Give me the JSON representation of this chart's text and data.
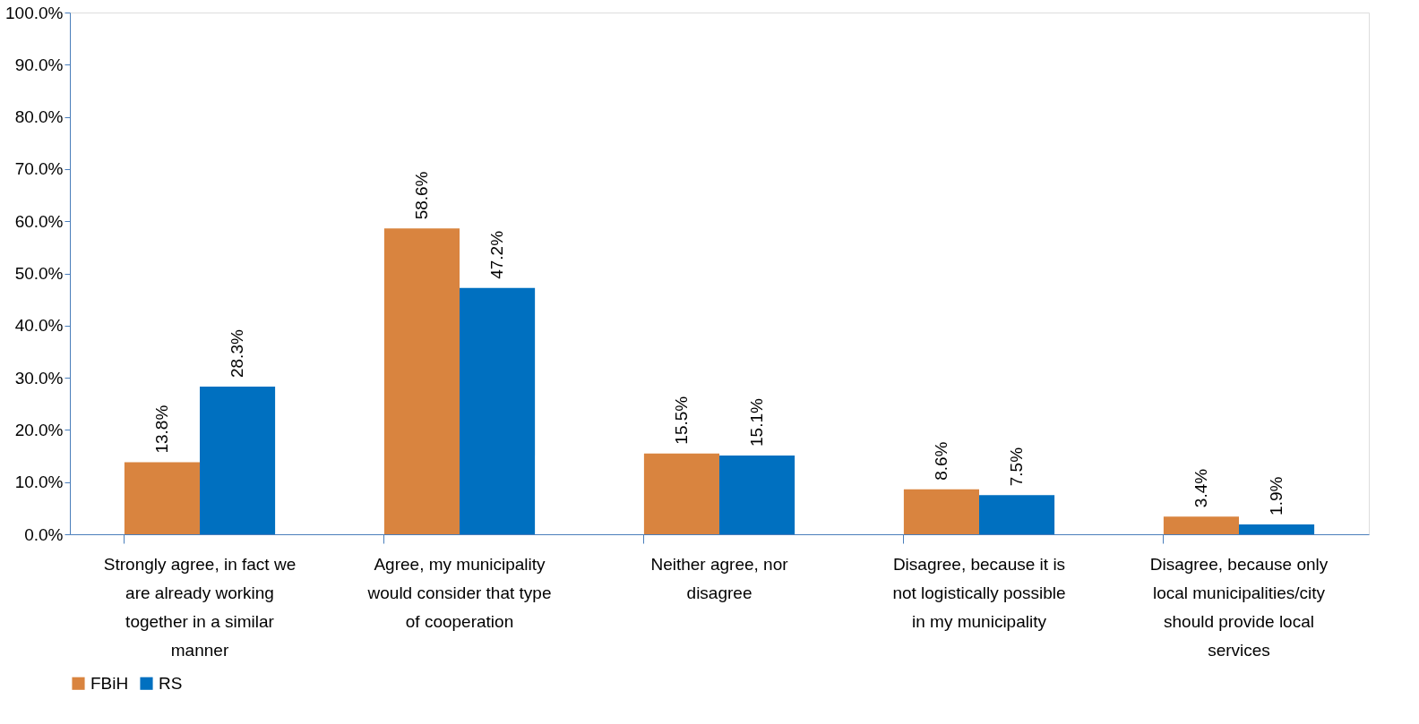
{
  "chart_data": {
    "type": "bar",
    "categories": [
      "Strongly agree, in fact we are already working together in a similar manner",
      "Agree, my municipality would consider that type of cooperation",
      "Neither agree, nor disagree",
      "Disagree, because it is not logistically possible in my municipality",
      "Disagree, because only local municipalities/city should provide local services"
    ],
    "series": [
      {
        "name": "FBiH",
        "color": "#d9843f",
        "values": [
          13.8,
          58.6,
          15.5,
          8.6,
          3.4
        ],
        "value_labels": [
          "13.8%",
          "58.6%",
          "15.5%",
          "8.6%",
          "3.4%"
        ]
      },
      {
        "name": "RS",
        "color": "#0070c0",
        "values": [
          28.3,
          47.2,
          15.1,
          7.5,
          1.9
        ],
        "value_labels": [
          "28.3%",
          "47.2%",
          "15.1%",
          "7.5%",
          "1.9%"
        ]
      }
    ],
    "ylim": [
      0,
      100
    ],
    "yticks": [
      {
        "value": 0,
        "label": "0.0%"
      },
      {
        "value": 10,
        "label": "10.0%"
      },
      {
        "value": 20,
        "label": "20.0%"
      },
      {
        "value": 30,
        "label": "30.0%"
      },
      {
        "value": 40,
        "label": "40.0%"
      },
      {
        "value": 50,
        "label": "50.0%"
      },
      {
        "value": 60,
        "label": "60.0%"
      },
      {
        "value": 70,
        "label": "70.0%"
      },
      {
        "value": 80,
        "label": "80.0%"
      },
      {
        "value": 90,
        "label": "90.0%"
      },
      {
        "value": 100,
        "label": "100.0%"
      }
    ],
    "grid": false,
    "legend": "bottom"
  }
}
